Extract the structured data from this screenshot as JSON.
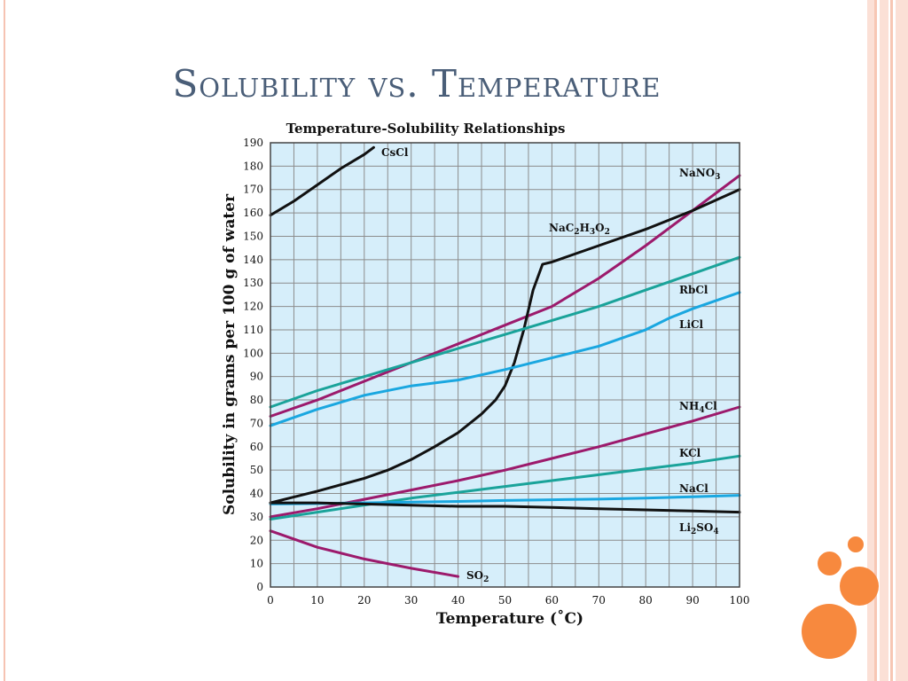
{
  "slide": {
    "title": "Solubility vs. Temperature"
  },
  "colors": {
    "title_text": "#4a5e78",
    "plot_background": "#d6eefa",
    "grid": "#8c8c8c",
    "stripe_light": "#fbe0d6",
    "stripe_mid": "#f7c7b4",
    "accent_dots": "#f7893e",
    "series_black": "#111111",
    "series_magenta": "#9c1a6c",
    "series_teal": "#1aa39a",
    "series_blue": "#1aa7e0"
  },
  "chart_data": {
    "type": "line",
    "title": "Temperature-Solubility Relationships",
    "xlabel": "Temperature (˚C)",
    "ylabel": "Solubility in grams per 100 g of water",
    "xlim": [
      0,
      100
    ],
    "ylim": [
      0,
      190
    ],
    "xticks": [
      0,
      10,
      20,
      30,
      40,
      50,
      60,
      70,
      80,
      90,
      100
    ],
    "yticks": [
      0,
      10,
      20,
      30,
      40,
      50,
      60,
      70,
      80,
      90,
      100,
      110,
      120,
      130,
      140,
      150,
      160,
      170,
      180,
      190
    ],
    "grid": true,
    "series": [
      {
        "name": "CsCl",
        "label_parts": [
          [
            "CsCl",
            ""
          ]
        ],
        "color": "#111111",
        "x": [
          0,
          5,
          10,
          15,
          20,
          22
        ],
        "y": [
          159,
          165,
          172,
          179,
          185,
          188
        ]
      },
      {
        "name": "NaNO3",
        "label_parts": [
          [
            "NaNO",
            ""
          ],
          [
            "3",
            "sub"
          ]
        ],
        "color": "#9c1a6c",
        "x": [
          0,
          10,
          20,
          30,
          40,
          50,
          60,
          70,
          80,
          90,
          100
        ],
        "y": [
          73,
          80,
          88,
          96,
          104,
          112,
          120,
          132,
          146,
          161,
          176
        ]
      },
      {
        "name": "NaC2H3O2",
        "label_parts": [
          [
            "NaC",
            ""
          ],
          [
            "2",
            "sub"
          ],
          [
            "H",
            ""
          ],
          [
            "3",
            "sub"
          ],
          [
            "O",
            ""
          ],
          [
            "2",
            "sub"
          ]
        ],
        "color": "#111111",
        "x": [
          0,
          10,
          20,
          25,
          30,
          35,
          40,
          45,
          48,
          50,
          52,
          54,
          56,
          58,
          60,
          70,
          80,
          90,
          100
        ],
        "y": [
          36,
          41,
          46.5,
          50,
          54.5,
          60,
          66,
          74,
          80,
          86,
          96,
          110,
          127,
          138,
          139,
          146,
          153,
          161,
          170
        ]
      },
      {
        "name": "RbCl",
        "label_parts": [
          [
            "RbCl",
            ""
          ]
        ],
        "color": "#1aa39a",
        "x": [
          0,
          10,
          20,
          30,
          40,
          50,
          60,
          70,
          80,
          90,
          100
        ],
        "y": [
          77,
          84,
          90,
          96,
          102,
          108,
          114,
          120,
          127,
          134,
          141
        ]
      },
      {
        "name": "LiCl",
        "label_parts": [
          [
            "LiCl",
            ""
          ]
        ],
        "color": "#1aa7e0",
        "x": [
          0,
          10,
          20,
          30,
          40,
          50,
          60,
          70,
          80,
          85,
          90,
          100
        ],
        "y": [
          69,
          76,
          82,
          86,
          88.5,
          93,
          98,
          103,
          110,
          115,
          119,
          126
        ]
      },
      {
        "name": "NH4Cl",
        "label_parts": [
          [
            "NH",
            ""
          ],
          [
            "4",
            "sub"
          ],
          [
            "Cl",
            ""
          ]
        ],
        "color": "#9c1a6c",
        "x": [
          0,
          10,
          20,
          30,
          40,
          50,
          60,
          70,
          80,
          90,
          100
        ],
        "y": [
          30,
          33.5,
          37.5,
          41.5,
          45.5,
          50,
          55,
          60,
          65.5,
          71,
          77
        ]
      },
      {
        "name": "KCl",
        "label_parts": [
          [
            "KCl",
            ""
          ]
        ],
        "color": "#1aa39a",
        "x": [
          0,
          10,
          20,
          30,
          40,
          50,
          60,
          70,
          80,
          90,
          100
        ],
        "y": [
          29,
          32,
          35,
          38,
          40.5,
          43,
          45.5,
          48,
          50.5,
          53,
          56
        ]
      },
      {
        "name": "NaCl",
        "label_parts": [
          [
            "NaCl",
            ""
          ]
        ],
        "color": "#1aa7e0",
        "x": [
          0,
          10,
          20,
          30,
          40,
          50,
          60,
          70,
          80,
          90,
          100
        ],
        "y": [
          35.5,
          35.7,
          36,
          36.3,
          36.6,
          37,
          37.3,
          37.6,
          38,
          38.6,
          39.2
        ]
      },
      {
        "name": "Li2SO4",
        "label_parts": [
          [
            "Li",
            ""
          ],
          [
            "2",
            "sub"
          ],
          [
            "SO",
            ""
          ],
          [
            "4",
            "sub"
          ]
        ],
        "color": "#111111",
        "x": [
          0,
          10,
          20,
          30,
          40,
          50,
          60,
          70,
          80,
          90,
          100
        ],
        "y": [
          36,
          36,
          35.5,
          35,
          34.5,
          34.5,
          34,
          33.5,
          33,
          32.5,
          32
        ]
      },
      {
        "name": "SO2",
        "label_parts": [
          [
            "SO",
            ""
          ],
          [
            "2",
            "sub"
          ]
        ],
        "color": "#9c1a6c",
        "x": [
          0,
          10,
          20,
          30,
          40
        ],
        "y": [
          24,
          17,
          12,
          8,
          4.5
        ]
      }
    ]
  }
}
